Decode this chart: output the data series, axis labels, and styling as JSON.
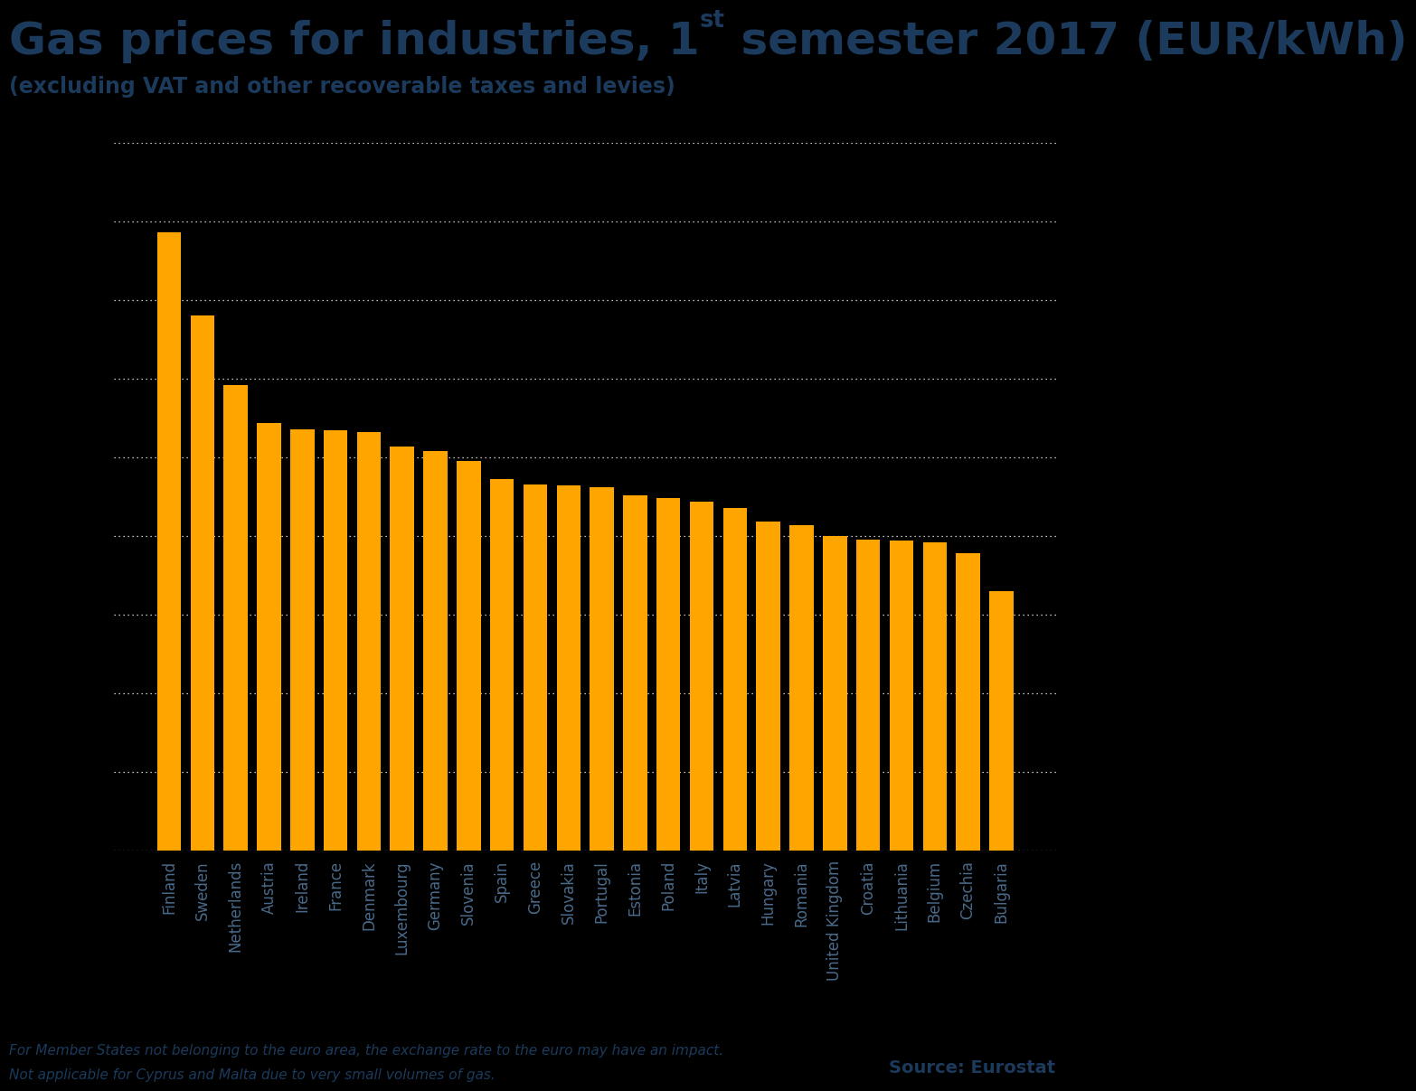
{
  "title_main": "Gas prices for industries, 1",
  "title_super": "st",
  "title_rest": " semester 2017 (EUR/kWh)",
  "subtitle": "(excluding VAT and other recoverable taxes and levies)",
  "categories": [
    "Finland",
    "Sweden",
    "Netherlands",
    "Austria",
    "Ireland",
    "France",
    "Denmark",
    "Luxembourg",
    "Germany",
    "Slovenia",
    "Spain",
    "Greece",
    "Slovakia",
    "Portugal",
    "Estonia",
    "Poland",
    "Italy",
    "Latvia",
    "Hungary",
    "Romania",
    "United Kingdom",
    "Croatia",
    "Lithuania",
    "Belgium",
    "Czechia",
    "Bulgaria"
  ],
  "values": [
    0.0393,
    0.034,
    0.0296,
    0.0272,
    0.0268,
    0.0267,
    0.0266,
    0.0257,
    0.0254,
    0.0248,
    0.0236,
    0.0233,
    0.0232,
    0.0231,
    0.0226,
    0.0224,
    0.0222,
    0.0218,
    0.0209,
    0.0207,
    0.02,
    0.0198,
    0.0197,
    0.0196,
    0.0189,
    0.0165
  ],
  "bar_color": "#FFA500",
  "background_color": "#000000",
  "title_color": "#1b3a5c",
  "subtitle_color": "#1b3a5c",
  "tick_label_color": "#4a6a8a",
  "grid_color": "#ffffff",
  "footnote_color": "#1b3a5c",
  "source_color": "#1b3a5c",
  "ylim_max": 0.045,
  "ytick_values": [
    0.0,
    0.005,
    0.01,
    0.015,
    0.02,
    0.025,
    0.03,
    0.035,
    0.04,
    0.045
  ],
  "footnote_line1": "For Member States not belonging to the euro area, the exchange rate to the euro may have an impact.",
  "footnote_line2": "Not applicable for Cyprus and Malta due to very small volumes of gas.",
  "source_text": "Source: Eurostat",
  "title_fontsize": 36,
  "subtitle_fontsize": 17,
  "tick_fontsize": 12,
  "footnote_fontsize": 11,
  "source_fontsize": 14,
  "bar_width": 0.72
}
